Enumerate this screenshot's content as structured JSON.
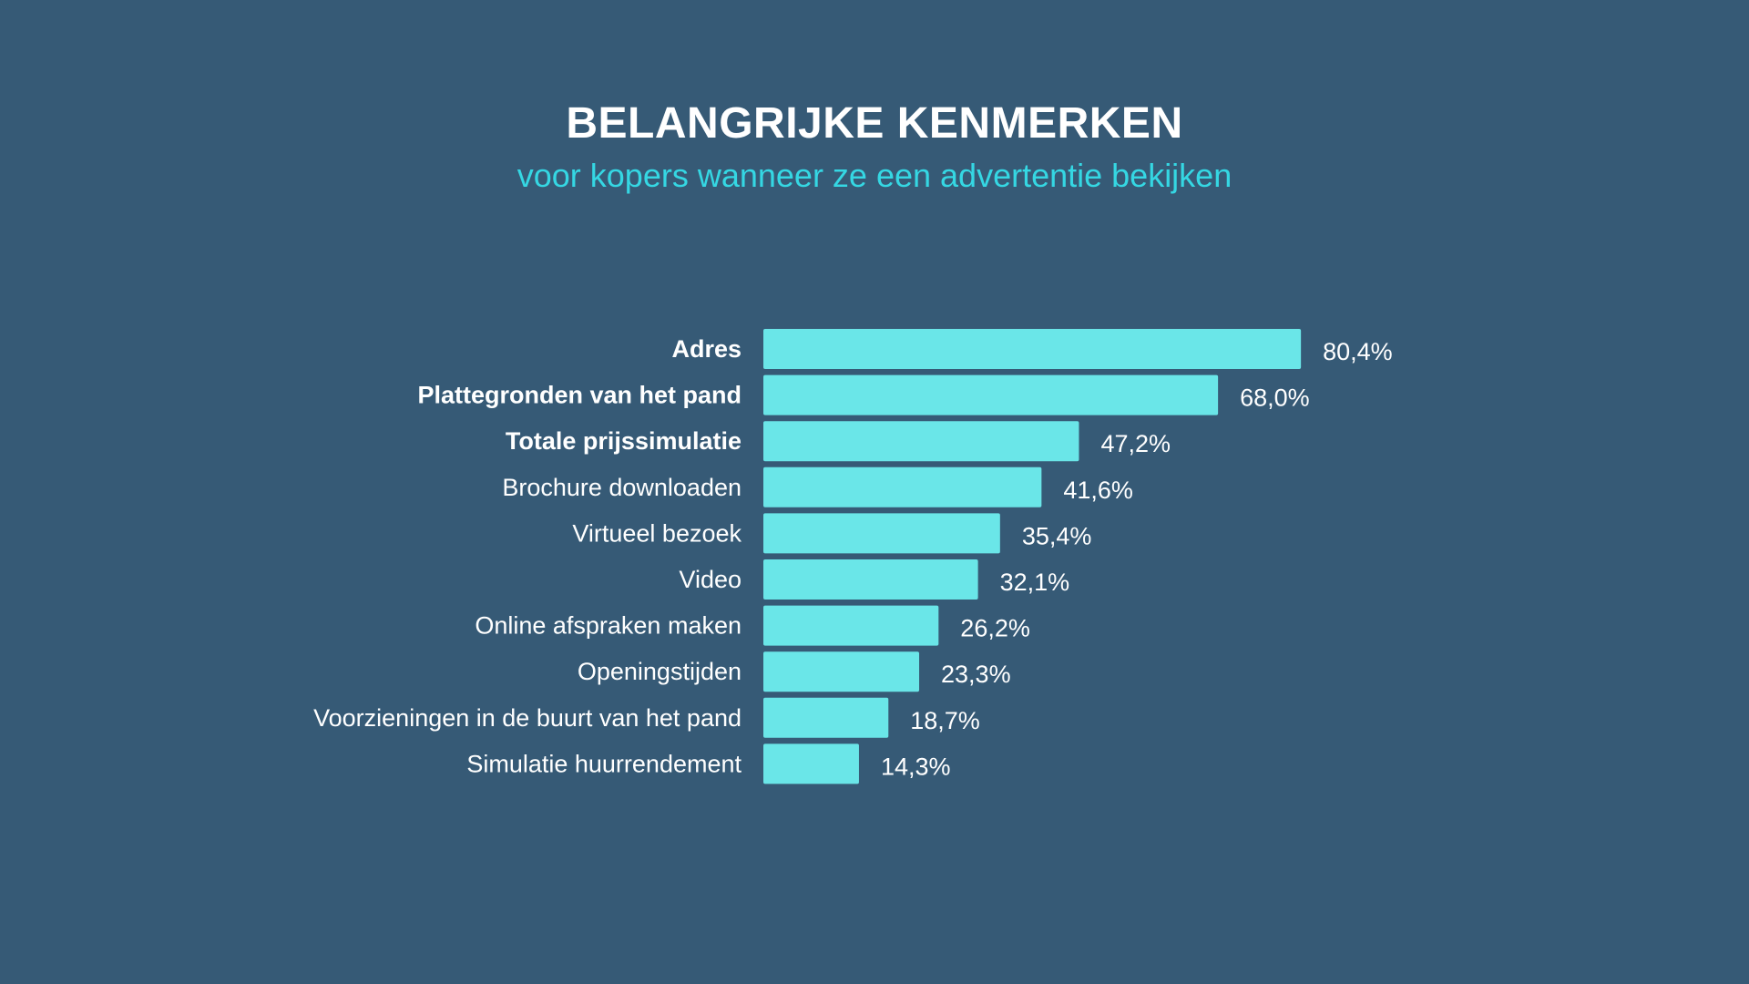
{
  "colors": {
    "background": "#365a76",
    "bar": "#6ae6e8",
    "title": "#ffffff",
    "subtitle": "#35d7e3",
    "label": "#ffffff"
  },
  "chart_data": {
    "type": "bar",
    "orientation": "horizontal",
    "title": "BELANGRIJKE KENMERKEN",
    "subtitle": "voor kopers wanneer ze een advertentie bekijken",
    "categories": [
      "Adres",
      "Plattegronden van het pand",
      "Totale prijssimulatie",
      "Brochure downloaden",
      "Virtueel bezoek",
      "Video",
      "Online afspraken maken",
      "Openingstijden",
      "Voorzieningen in de buurt van het pand",
      "Simulatie huurrendement"
    ],
    "values": [
      80.4,
      68.0,
      47.2,
      41.6,
      35.4,
      32.1,
      26.2,
      23.3,
      18.7,
      14.3
    ],
    "value_labels": [
      "80,4%",
      "68,0%",
      "47,2%",
      "41,6%",
      "35,4%",
      "32,1%",
      "26,2%",
      "23,3%",
      "18,7%",
      "14,3%"
    ],
    "bold_categories": [
      true,
      true,
      true,
      false,
      false,
      false,
      false,
      false,
      false,
      false
    ],
    "xlim": [
      0,
      100
    ],
    "grid": false,
    "legend": "none"
  }
}
